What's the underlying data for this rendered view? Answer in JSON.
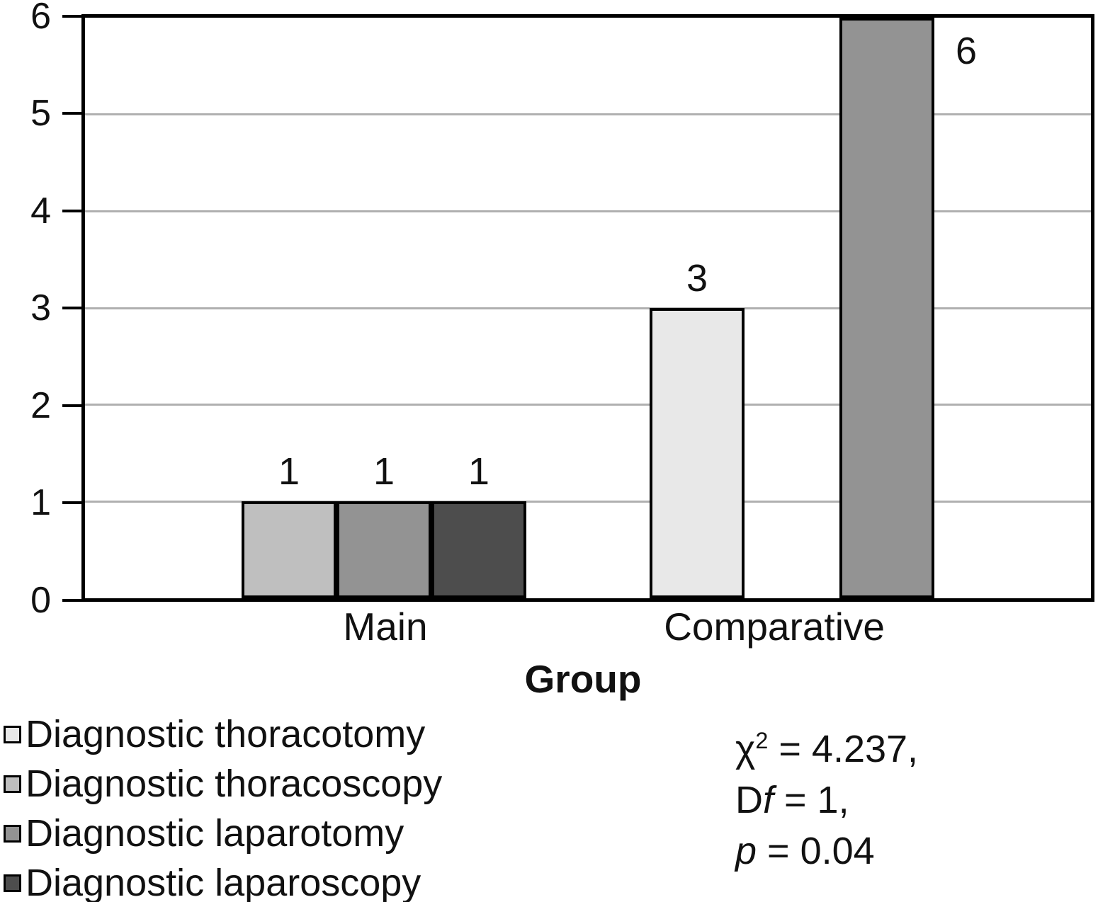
{
  "chart_data": {
    "type": "bar",
    "title": "",
    "xlabel": "Group",
    "ylabel": "",
    "ylim": [
      0,
      6
    ],
    "ytick_step": 1,
    "grid": true,
    "legend_position": "bottom-left",
    "categories": [
      "Main",
      "Comparative"
    ],
    "series": [
      {
        "name": "Diagnostic thoracotomy",
        "color": "#e8e8e8",
        "values": [
          0,
          3
        ]
      },
      {
        "name": "Diagnostic thoracoscopy",
        "color": "#bfbfbf",
        "values": [
          1,
          0
        ]
      },
      {
        "name": "Diagnostic laparotomy",
        "color": "#939393",
        "values": [
          1,
          6
        ]
      },
      {
        "name": "Diagnostic laparoscopy",
        "color": "#4d4d4d",
        "values": [
          1,
          0
        ]
      }
    ],
    "bar_value_labels": true
  },
  "annotation": {
    "chi": {
      "symbol": "χ",
      "sup": "2",
      "rest": " = 4.237,"
    },
    "df": {
      "prefix": "D",
      "italic": "f",
      "rest": " = 1,"
    },
    "p": {
      "italic": "p",
      "rest": " = 0.04"
    }
  },
  "colors": {
    "grid": "#b0b0b0",
    "axis": "#000000",
    "text": "#111111",
    "background": "#ffffff"
  }
}
